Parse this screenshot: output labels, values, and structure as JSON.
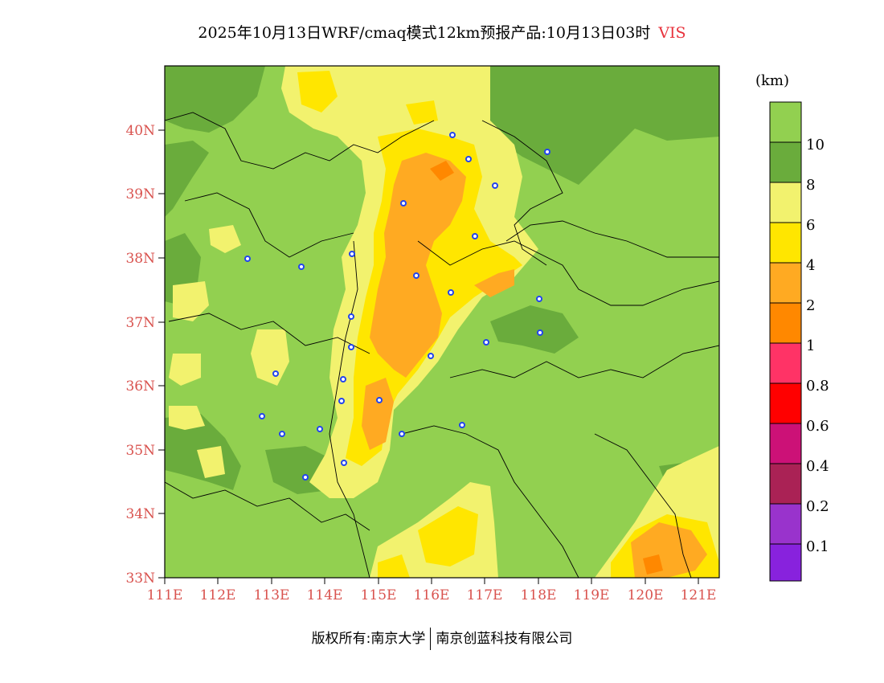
{
  "title": "2025年10月13日WRF/cmaq模式12km预报产品:10月13日03时",
  "variable": "VIS",
  "unit": "(km)",
  "lat_labels": [
    "40N",
    "39N",
    "38N",
    "37N",
    "36N",
    "35N",
    "34N",
    "33N"
  ],
  "lon_labels": [
    "111E",
    "112E",
    "113E",
    "114E",
    "115E",
    "116E",
    "117E",
    "118E",
    "119E",
    "120E",
    "121E"
  ],
  "colorbar": {
    "colors": [
      "#92d050",
      "#6aac3c",
      "#f2f26e",
      "#ffe600",
      "#ffaa22",
      "#ff8800",
      "#ff3366",
      "#ff0000",
      "#cc1177",
      "#aa2255",
      "#9933cc",
      "#8822dd"
    ],
    "labels": [
      "10",
      "8",
      "6",
      "4",
      "2",
      "1",
      "0.8",
      "0.6",
      "0.4",
      "0.2",
      "0.1"
    ]
  },
  "footer": {
    "left": "版权所有:南京大学",
    "right": "南京创蓝科技有限公司"
  }
}
